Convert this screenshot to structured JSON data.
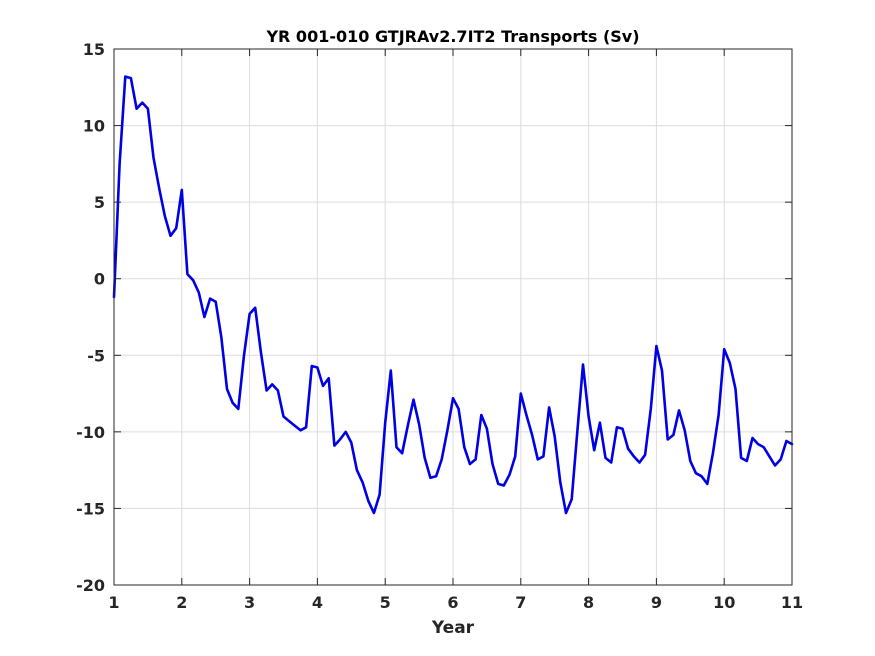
{
  "chart_data": {
    "type": "line",
    "title": "YR 001-010 GTJRAv2.7IT2 Transports (Sv)",
    "xlabel": "Year",
    "ylabel": "",
    "xlim": [
      1,
      11
    ],
    "ylim": [
      -20,
      15
    ],
    "xticks": [
      1,
      2,
      3,
      4,
      5,
      6,
      7,
      8,
      9,
      10,
      11
    ],
    "yticks": [
      -20,
      -15,
      -10,
      -5,
      0,
      5,
      10,
      15
    ],
    "grid": true,
    "colors": {
      "line": "#0000e6",
      "axis": "#262626",
      "grid": "#dcdcdc"
    },
    "series": [
      {
        "x": [
          1.0,
          1.083,
          1.167,
          1.25,
          1.333,
          1.417,
          1.5,
          1.583,
          1.667,
          1.75,
          1.833,
          1.917,
          2.0,
          2.083,
          2.167,
          2.25,
          2.333,
          2.417,
          2.5,
          2.583,
          2.667,
          2.75,
          2.833,
          2.917,
          3.0,
          3.083,
          3.167,
          3.25,
          3.333,
          3.417,
          3.5,
          3.583,
          3.667,
          3.75,
          3.833,
          3.917,
          4.0,
          4.083,
          4.167,
          4.25,
          4.333,
          4.417,
          4.5,
          4.583,
          4.667,
          4.75,
          4.833,
          4.917,
          5.0,
          5.083,
          5.167,
          5.25,
          5.333,
          5.417,
          5.5,
          5.583,
          5.667,
          5.75,
          5.833,
          5.917,
          6.0,
          6.083,
          6.167,
          6.25,
          6.333,
          6.417,
          6.5,
          6.583,
          6.667,
          6.75,
          6.833,
          6.917,
          7.0,
          7.083,
          7.167,
          7.25,
          7.333,
          7.417,
          7.5,
          7.583,
          7.667,
          7.75,
          7.833,
          7.917,
          8.0,
          8.083,
          8.167,
          8.25,
          8.333,
          8.417,
          8.5,
          8.583,
          8.667,
          8.75,
          8.833,
          8.917,
          9.0,
          9.083,
          9.167,
          9.25,
          9.333,
          9.417,
          9.5,
          9.583,
          9.667,
          9.75,
          9.833,
          9.917,
          10.0,
          10.083,
          10.167,
          10.25,
          10.333,
          10.417,
          10.5,
          10.583,
          10.667,
          10.75,
          10.833,
          10.917,
          11.0
        ],
        "y": [
          -1.2,
          7.5,
          13.2,
          13.1,
          11.1,
          11.5,
          11.1,
          7.9,
          5.9,
          4.1,
          2.8,
          3.3,
          5.8,
          0.3,
          -0.1,
          -0.9,
          -2.5,
          -1.3,
          -1.5,
          -3.8,
          -7.2,
          -8.1,
          -8.5,
          -5.0,
          -2.3,
          -1.9,
          -4.8,
          -7.3,
          -6.9,
          -7.3,
          -9.0,
          -9.3,
          -9.6,
          -9.9,
          -9.7,
          -5.7,
          -5.8,
          -7.0,
          -6.5,
          -10.9,
          -10.5,
          -10.0,
          -10.7,
          -12.5,
          -13.3,
          -14.5,
          -15.3,
          -14.1,
          -9.4,
          -6.0,
          -11.0,
          -11.4,
          -9.6,
          -7.9,
          -9.5,
          -11.7,
          -13.0,
          -12.9,
          -11.8,
          -9.9,
          -7.8,
          -8.5,
          -11.0,
          -12.1,
          -11.8,
          -8.9,
          -9.8,
          -12.1,
          -13.4,
          -13.5,
          -12.8,
          -11.6,
          -7.5,
          -8.9,
          -10.2,
          -11.8,
          -11.6,
          -8.4,
          -10.3,
          -13.3,
          -15.3,
          -14.4,
          -10.0,
          -5.6,
          -9.0,
          -11.2,
          -9.4,
          -11.7,
          -12.0,
          -9.7,
          -9.8,
          -11.1,
          -11.6,
          -12.0,
          -11.5,
          -8.5,
          -4.4,
          -6.0,
          -10.5,
          -10.2,
          -8.6,
          -9.9,
          -11.9,
          -12.7,
          -12.9,
          -13.4,
          -11.4,
          -8.9,
          -4.6,
          -5.5,
          -7.2,
          -11.7,
          -11.9,
          -10.4,
          -10.8,
          -11.0,
          -11.6,
          -12.2,
          -11.8,
          -10.6,
          -10.8
        ]
      }
    ]
  }
}
